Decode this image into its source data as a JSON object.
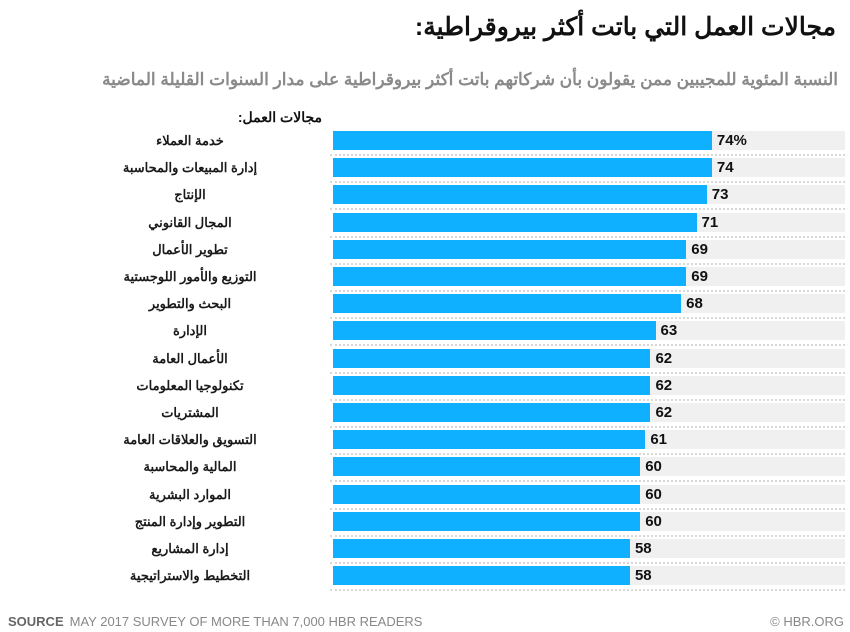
{
  "chart_data": {
    "type": "bar",
    "orientation": "horizontal",
    "title": "مجالات العمل التي باتت أكثر بيروقراطية:",
    "subtitle": "النسبة المئوية للمجيبين ممن يقولون بأن شركاتهم باتت أكثر بيروقراطية على مدار السنوات القليلة الماضية",
    "category_header": "مجالات العمل:",
    "xlim": [
      0,
      100
    ],
    "grid": false,
    "categories": [
      "خدمة العملاء",
      "إدارة المبيعات والمحاسبة",
      "الإنتاج",
      "المجال القانوني",
      "تطوير الأعمال",
      "التوزيع والأمور اللوجستية",
      "البحث والتطوير",
      "الإدارة",
      "الأعمال العامة",
      "تكنولوجيا المعلومات",
      "المشتريات",
      "التسويق والعلاقات العامة",
      "المالية والمحاسبة",
      "الموارد البشرية",
      "التطوير وإدارة المنتج",
      "إدارة المشاريع",
      "التخطيط والاستراتيجية"
    ],
    "values": [
      74,
      74,
      73,
      71,
      69,
      69,
      68,
      63,
      62,
      62,
      62,
      61,
      60,
      60,
      60,
      58,
      58
    ],
    "value_labels": [
      "74%",
      "74",
      "73",
      "71",
      "69",
      "69",
      "68",
      "63",
      "62",
      "62",
      "62",
      "61",
      "60",
      "60",
      "60",
      "58",
      "58"
    ],
    "colors": {
      "bar": "#0fb0ff",
      "track": "#f0f0f0"
    }
  },
  "footer": {
    "source_label": "SOURCE",
    "source_text": "MAY 2017 SURVEY OF MORE THAN 7,000 HBR READERS",
    "copyright": "© HBR.ORG"
  }
}
